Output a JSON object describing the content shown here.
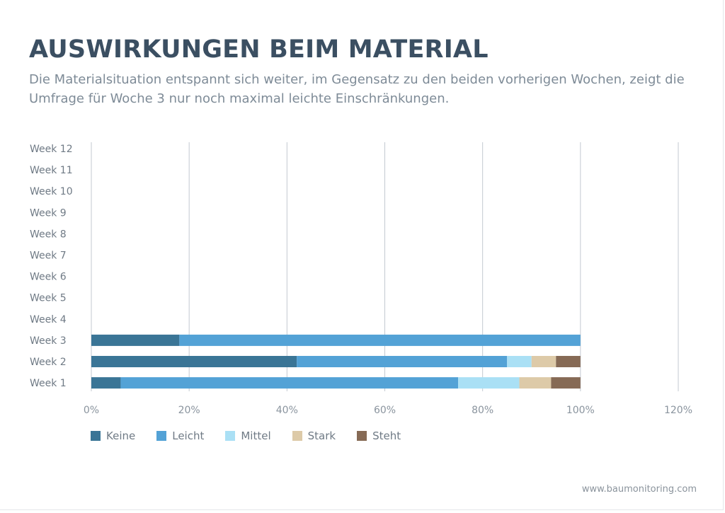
{
  "header": {
    "title": "AUSWIRKUNGEN BEIM MATERIAL",
    "subtitle": "Die Materialsituation entspannt sich weiter, im Gegensatz zu den beiden vorherigen Wochen, zeigt die Umfrage für Woche 3 nur noch maximal leichte Einschränkungen."
  },
  "footer": {
    "url": "www.baumonitoring.com"
  },
  "chart_data": {
    "type": "bar",
    "orientation": "horizontal",
    "stacked": true,
    "categories": [
      "Week 12",
      "Week 11",
      "Week 10",
      "Week 9",
      "Week 8",
      "Week 7",
      "Week 6",
      "Week 5",
      "Week 4",
      "Week 3",
      "Week 2",
      "Week 1"
    ],
    "series": [
      {
        "name": "Keine",
        "color": "#3a7596",
        "values": [
          null,
          null,
          null,
          null,
          null,
          null,
          null,
          null,
          null,
          0.18,
          0.42,
          0.06
        ]
      },
      {
        "name": "Leicht",
        "color": "#53a2d6",
        "values": [
          null,
          null,
          null,
          null,
          null,
          null,
          null,
          null,
          null,
          0.82,
          0.43,
          0.69
        ]
      },
      {
        "name": "Mittel",
        "color": "#aae0f5",
        "values": [
          null,
          null,
          null,
          null,
          null,
          null,
          null,
          null,
          null,
          0.0,
          0.05,
          0.125
        ]
      },
      {
        "name": "Stark",
        "color": "#ddcaa8",
        "values": [
          null,
          null,
          null,
          null,
          null,
          null,
          null,
          null,
          null,
          0.0,
          0.05,
          0.065
        ]
      },
      {
        "name": "Steht",
        "color": "#866a55",
        "values": [
          null,
          null,
          null,
          null,
          null,
          null,
          null,
          null,
          null,
          0.0,
          0.05,
          0.06
        ]
      }
    ],
    "xlim": [
      0,
      1.2
    ],
    "xticks": [
      "0%",
      "20%",
      "40%",
      "60%",
      "80%",
      "100%",
      "120%"
    ],
    "grid": true,
    "legend": "bottom-left"
  }
}
